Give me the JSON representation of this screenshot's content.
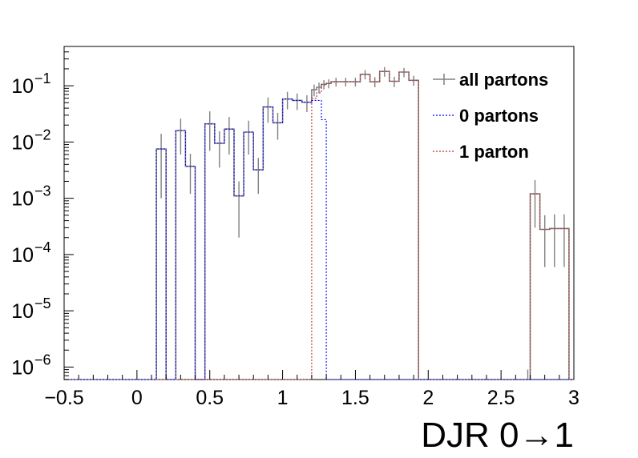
{
  "chart_data": {
    "type": "histogram",
    "xlabel": "DJR 0→1",
    "ylabel": "",
    "title": "",
    "xlim": [
      -0.5,
      3.0
    ],
    "ylim": [
      6e-07,
      0.5
    ],
    "yscale": "log",
    "grid": false,
    "legend_position": "top-right",
    "x_ticks": [
      "−0.5",
      "0",
      "0.5",
      "1",
      "1.5",
      "2",
      "2.5",
      "3"
    ],
    "y_ticks": [
      {
        "base": "10",
        "exp": "−1",
        "value": 0.1
      },
      {
        "base": "10",
        "exp": "−2",
        "value": 0.01
      },
      {
        "base": "10",
        "exp": "−3",
        "value": 0.001
      },
      {
        "base": "10",
        "exp": "−4",
        "value": 0.0001
      },
      {
        "base": "10",
        "exp": "−5",
        "value": 1e-05
      },
      {
        "base": "10",
        "exp": "−6",
        "value": 1e-06
      }
    ],
    "bin_edges": [
      -0.5,
      -0.4333,
      -0.3667,
      -0.3,
      -0.2333,
      -0.1667,
      -0.1,
      -0.0333,
      0.0333,
      0.1,
      0.1333,
      0.2,
      0.2667,
      0.3333,
      0.4,
      0.4667,
      0.5333,
      0.6,
      0.6667,
      0.7333,
      0.8,
      0.8667,
      0.9333,
      1.0,
      1.0667,
      1.1333,
      1.2,
      1.2333,
      1.2667,
      1.3,
      1.3333,
      1.4,
      1.4667,
      1.5333,
      1.6,
      1.6667,
      1.7333,
      1.8,
      1.8667,
      1.9333,
      2.0,
      2.0667,
      2.1333,
      2.2,
      2.2667,
      2.3333,
      2.4,
      2.4667,
      2.5333,
      2.6,
      2.6667,
      2.7,
      2.7667,
      2.8333,
      2.9,
      2.9667,
      3.0
    ],
    "series": [
      {
        "name": "all partons",
        "color": "#808080",
        "style": "solid",
        "values": [
          0,
          0,
          0,
          0,
          0,
          0,
          0,
          0,
          0,
          0,
          0.0075,
          0,
          0.016,
          0.0037,
          0,
          0.021,
          0.0095,
          0.017,
          0.0011,
          0.015,
          0.0032,
          0.042,
          0.022,
          0.058,
          0.055,
          0.051,
          0.085,
          0.094,
          0.106,
          0.11,
          0.118,
          0.118,
          0.118,
          0.16,
          0.118,
          0.18,
          0.12,
          0.175,
          0.125,
          0,
          0,
          0,
          0,
          0,
          0,
          0,
          0,
          0,
          0,
          0,
          5e-07,
          0.0012,
          0.00028,
          0.00029,
          0.00029,
          0
        ],
        "errors": [
          0,
          0,
          0,
          0,
          0,
          0,
          0,
          0,
          0,
          0,
          0.0065,
          0,
          0.01,
          0.0025,
          0,
          0.014,
          0.006,
          0.011,
          0.0009,
          0.009,
          0.002,
          0.02,
          0.011,
          0.02,
          0.018,
          0.017,
          0.02,
          0.02,
          0.02,
          0.02,
          0.021,
          0.021,
          0.021,
          0.03,
          0.024,
          0.035,
          0.025,
          0.033,
          0.025,
          0,
          0,
          0,
          0,
          0,
          0,
          0,
          0,
          0,
          0,
          0,
          4e-07,
          0.0009,
          0.00022,
          0.00023,
          0.00023,
          0
        ]
      },
      {
        "name": "0 partons",
        "color": "#0000ff",
        "style": "dashed",
        "values": [
          0,
          0,
          0,
          0,
          0,
          0,
          0,
          0,
          0,
          0,
          0.0075,
          0,
          0.016,
          0.0037,
          0,
          0.021,
          0.0095,
          0.017,
          0.0011,
          0.015,
          0.0032,
          0.042,
          0.022,
          0.058,
          0.055,
          0.051,
          0.055,
          0.055,
          0.025,
          0,
          0,
          0,
          0,
          0,
          0,
          0,
          0,
          0,
          0,
          0,
          0,
          0,
          0,
          0,
          0,
          0,
          0,
          0,
          0,
          0,
          0,
          0,
          0,
          0,
          0,
          0
        ]
      },
      {
        "name": "1 parton",
        "color": "#b03030",
        "style": "dashed",
        "values": [
          0,
          0,
          0,
          0,
          0,
          0,
          0,
          0,
          0,
          0,
          0,
          0,
          0,
          0,
          0,
          0,
          0,
          0,
          0,
          0,
          0,
          0,
          0,
          0,
          0,
          0,
          0.06,
          0.075,
          0.104,
          0.11,
          0.118,
          0.118,
          0.118,
          0.16,
          0.118,
          0.18,
          0.12,
          0.175,
          0.125,
          0,
          0,
          0,
          0,
          0,
          0,
          0,
          0,
          0,
          0,
          0,
          5e-07,
          0.0012,
          0.00028,
          0.00029,
          0.00029,
          0
        ]
      }
    ]
  }
}
